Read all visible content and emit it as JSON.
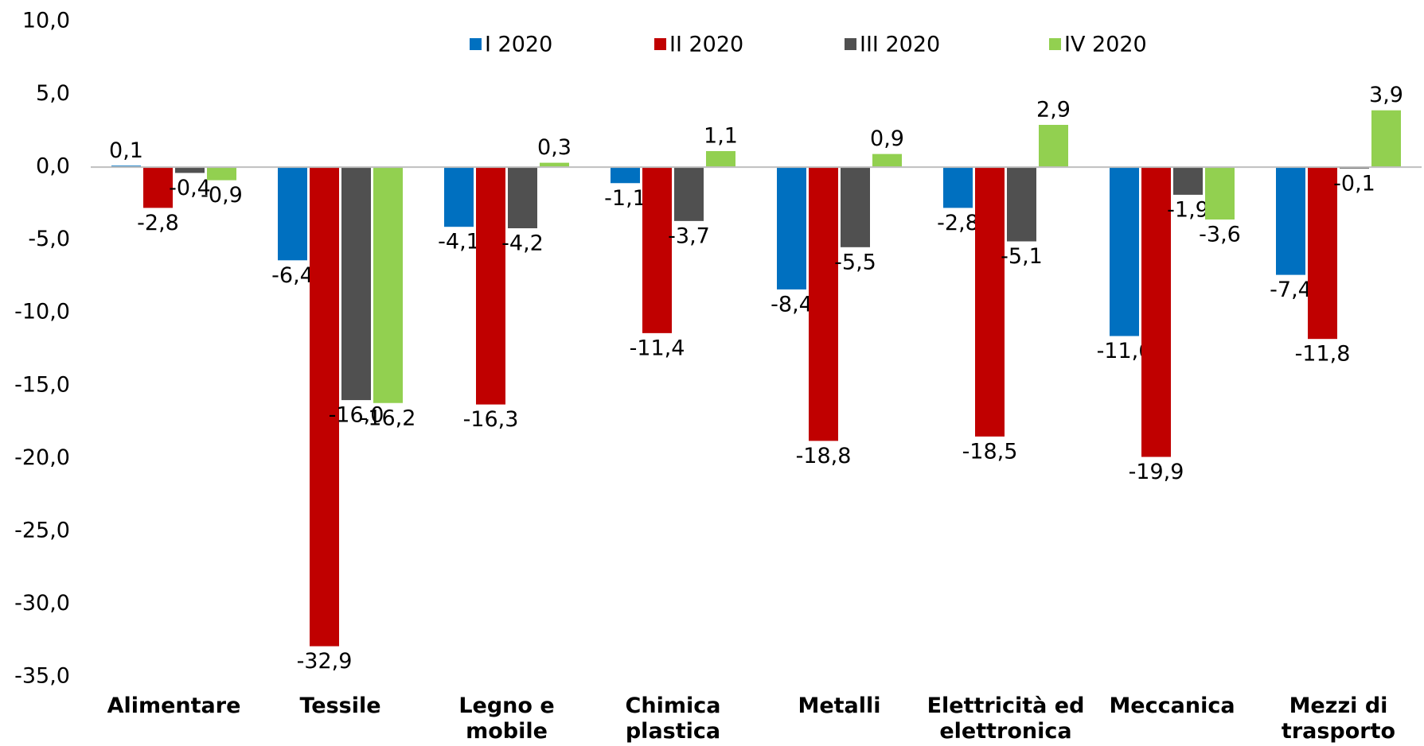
{
  "chart_data": {
    "type": "bar",
    "categories": [
      "Alimentare",
      "Tessile",
      "Legno e mobile",
      "Chimica plastica",
      "Metalli",
      "Elettricità ed elettronica",
      "Meccanica",
      "Mezzi di trasporto"
    ],
    "series": [
      {
        "name": "I 2020",
        "color": "#0070c0",
        "values": [
          0.1,
          -6.4,
          -4.1,
          -1.1,
          -8.4,
          -2.8,
          -11.6,
          -7.4
        ],
        "value_labels": [
          "0,1",
          "-6,4",
          "-4,1",
          "-1,1",
          "-8,4",
          "-2,8",
          "-11,6",
          "-7,4"
        ]
      },
      {
        "name": "II 2020",
        "color": "#c00000",
        "values": [
          -2.8,
          -32.9,
          -16.3,
          -11.4,
          -18.8,
          -18.5,
          -19.9,
          -11.8
        ],
        "value_labels": [
          "-2,8",
          "-32,9",
          "-16,3",
          "-11,4",
          "-18,8",
          "-18,5",
          "-19,9",
          "-11,8"
        ]
      },
      {
        "name": "III 2020",
        "color": "#505050",
        "values": [
          -0.4,
          -16.0,
          -4.2,
          -3.7,
          -5.5,
          -5.1,
          -1.9,
          -0.1
        ],
        "value_labels": [
          "-0,4",
          "-16,0",
          "-4,2",
          "-3,7",
          "-5,5",
          "-5,1",
          "-1,9",
          "-0,1"
        ]
      },
      {
        "name": "IV 2020",
        "color": "#92d050",
        "values": [
          -0.9,
          -16.2,
          0.3,
          1.1,
          0.9,
          2.9,
          -3.6,
          3.9
        ],
        "value_labels": [
          "-0,9",
          "-16,2",
          "0,3",
          "1,1",
          "0,9",
          "2,9",
          "-3,6",
          "3,9"
        ]
      }
    ],
    "ylim": [
      -35,
      10
    ],
    "yticks": [
      {
        "value": -35,
        "label": "-35,0"
      },
      {
        "value": -30,
        "label": "-30,0"
      },
      {
        "value": -25,
        "label": "-25,0"
      },
      {
        "value": -20,
        "label": "-20,0"
      },
      {
        "value": -15,
        "label": "-15,0"
      },
      {
        "value": -10,
        "label": "-10,0"
      },
      {
        "value": -5,
        "label": "-5,0"
      },
      {
        "value": 0,
        "label": "0,0"
      },
      {
        "value": 5,
        "label": "5,0"
      },
      {
        "value": 10,
        "label": "10,0"
      }
    ],
    "grid": false,
    "legend": "top"
  }
}
